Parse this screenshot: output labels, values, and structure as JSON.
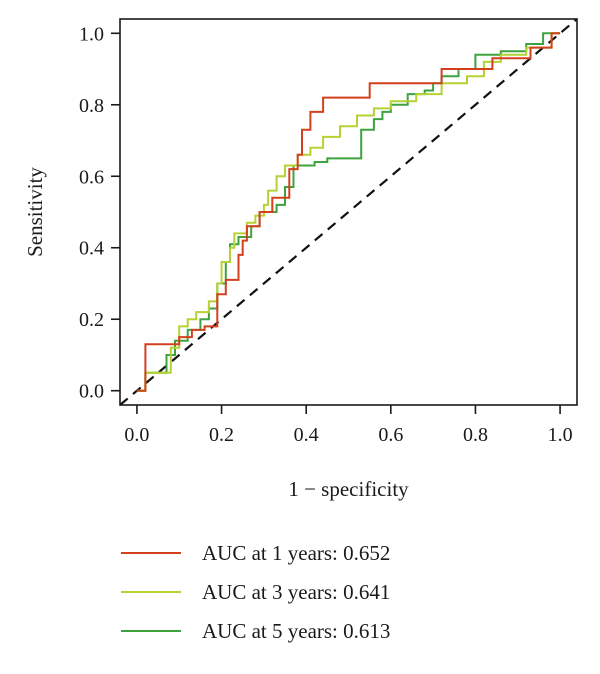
{
  "chart_data": {
    "type": "line",
    "title": "",
    "xlabel": "1 − specificity",
    "ylabel": "Sensitivity",
    "xlim": [
      -0.04,
      1.04
    ],
    "ylim": [
      -0.04,
      1.04
    ],
    "x_ticks": [
      "0.0",
      "0.2",
      "0.4",
      "0.6",
      "0.8",
      "1.0"
    ],
    "y_ticks": [
      "0.0",
      "0.2",
      "0.4",
      "0.6",
      "0.8",
      "1.0"
    ],
    "grid": false,
    "legend_position": "bottom",
    "reference_line": {
      "from": [
        -0.04,
        -0.04
      ],
      "to": [
        1.04,
        1.04
      ],
      "style": "dashed",
      "color": "#111111"
    },
    "series": [
      {
        "name": "AUC at 1 years: 0.652",
        "color": "#d2401e",
        "step": true,
        "x": [
          0.0,
          0.02,
          0.02,
          0.1,
          0.1,
          0.13,
          0.13,
          0.16,
          0.16,
          0.19,
          0.19,
          0.21,
          0.21,
          0.24,
          0.24,
          0.25,
          0.25,
          0.26,
          0.26,
          0.29,
          0.29,
          0.32,
          0.32,
          0.36,
          0.36,
          0.38,
          0.38,
          0.39,
          0.39,
          0.41,
          0.41,
          0.44,
          0.44,
          0.55,
          0.55,
          0.72,
          0.72,
          0.84,
          0.84,
          0.93,
          0.93,
          0.98,
          0.98,
          1.0
        ],
        "y": [
          0.0,
          0.0,
          0.13,
          0.13,
          0.15,
          0.15,
          0.17,
          0.17,
          0.18,
          0.18,
          0.27,
          0.27,
          0.31,
          0.31,
          0.38,
          0.38,
          0.42,
          0.42,
          0.46,
          0.46,
          0.5,
          0.5,
          0.54,
          0.54,
          0.62,
          0.62,
          0.66,
          0.66,
          0.73,
          0.73,
          0.78,
          0.78,
          0.82,
          0.82,
          0.86,
          0.86,
          0.9,
          0.9,
          0.93,
          0.93,
          0.96,
          0.96,
          1.0,
          1.0
        ]
      },
      {
        "name": "AUC at 3 years: 0.641",
        "color": "#b5d233",
        "step": true,
        "x": [
          0.0,
          0.02,
          0.02,
          0.08,
          0.08,
          0.1,
          0.1,
          0.12,
          0.12,
          0.14,
          0.14,
          0.17,
          0.17,
          0.19,
          0.19,
          0.2,
          0.2,
          0.22,
          0.22,
          0.23,
          0.23,
          0.26,
          0.26,
          0.28,
          0.28,
          0.3,
          0.3,
          0.31,
          0.31,
          0.33,
          0.33,
          0.35,
          0.35,
          0.38,
          0.38,
          0.41,
          0.41,
          0.44,
          0.44,
          0.48,
          0.48,
          0.52,
          0.52,
          0.56,
          0.56,
          0.6,
          0.6,
          0.66,
          0.66,
          0.72,
          0.72,
          0.78,
          0.78,
          0.82,
          0.82,
          0.86,
          0.86,
          0.92,
          0.92,
          0.98,
          0.98,
          1.0
        ],
        "y": [
          0.0,
          0.0,
          0.05,
          0.05,
          0.12,
          0.12,
          0.18,
          0.18,
          0.2,
          0.2,
          0.22,
          0.22,
          0.25,
          0.25,
          0.3,
          0.3,
          0.36,
          0.36,
          0.4,
          0.4,
          0.44,
          0.44,
          0.47,
          0.47,
          0.49,
          0.49,
          0.52,
          0.52,
          0.56,
          0.56,
          0.6,
          0.6,
          0.63,
          0.63,
          0.66,
          0.66,
          0.68,
          0.68,
          0.71,
          0.71,
          0.74,
          0.74,
          0.77,
          0.77,
          0.79,
          0.79,
          0.81,
          0.81,
          0.83,
          0.83,
          0.86,
          0.86,
          0.88,
          0.88,
          0.92,
          0.92,
          0.94,
          0.94,
          0.96,
          0.96,
          1.0,
          1.0
        ]
      },
      {
        "name": "AUC at 5 years: 0.613",
        "color": "#3ea33e",
        "step": true,
        "x": [
          0.0,
          0.02,
          0.02,
          0.07,
          0.07,
          0.09,
          0.09,
          0.12,
          0.12,
          0.15,
          0.15,
          0.17,
          0.17,
          0.19,
          0.19,
          0.21,
          0.21,
          0.22,
          0.22,
          0.24,
          0.24,
          0.27,
          0.27,
          0.29,
          0.29,
          0.33,
          0.33,
          0.35,
          0.35,
          0.37,
          0.37,
          0.42,
          0.42,
          0.45,
          0.45,
          0.53,
          0.53,
          0.56,
          0.56,
          0.58,
          0.58,
          0.6,
          0.6,
          0.64,
          0.64,
          0.68,
          0.68,
          0.7,
          0.7,
          0.72,
          0.72,
          0.76,
          0.76,
          0.8,
          0.8,
          0.86,
          0.86,
          0.92,
          0.92,
          0.96,
          0.96,
          1.0
        ],
        "y": [
          0.0,
          0.0,
          0.05,
          0.05,
          0.1,
          0.1,
          0.14,
          0.14,
          0.17,
          0.17,
          0.2,
          0.2,
          0.23,
          0.23,
          0.3,
          0.3,
          0.36,
          0.36,
          0.41,
          0.41,
          0.43,
          0.43,
          0.46,
          0.46,
          0.5,
          0.5,
          0.52,
          0.52,
          0.57,
          0.57,
          0.63,
          0.63,
          0.64,
          0.64,
          0.65,
          0.65,
          0.73,
          0.73,
          0.76,
          0.76,
          0.78,
          0.78,
          0.8,
          0.8,
          0.83,
          0.83,
          0.84,
          0.84,
          0.86,
          0.86,
          0.88,
          0.88,
          0.9,
          0.9,
          0.94,
          0.94,
          0.95,
          0.95,
          0.97,
          0.97,
          1.0,
          1.0
        ]
      }
    ]
  }
}
